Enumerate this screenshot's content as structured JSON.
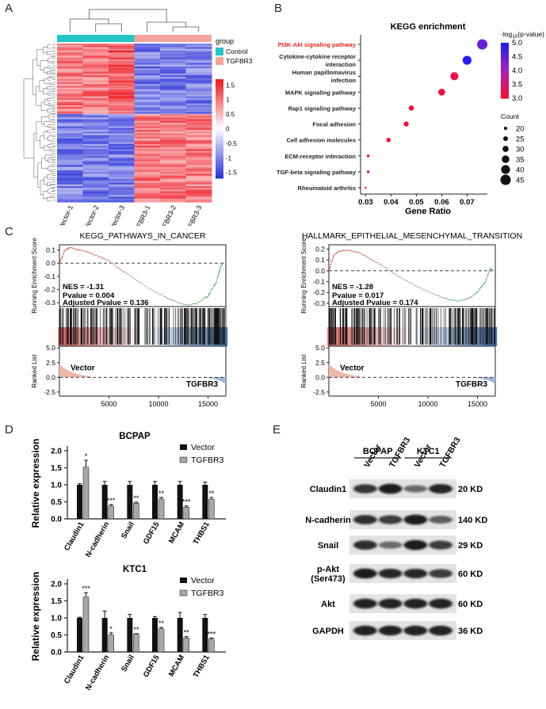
{
  "panels": {
    "A": "A",
    "B": "B",
    "C": "C",
    "D": "D",
    "E": "E"
  },
  "heatmap": {
    "legend_title": "group",
    "groups": [
      {
        "name": "Control",
        "color": "#22c6c6"
      },
      {
        "name": "TGFBR3",
        "color": "#f4a29a"
      }
    ],
    "samples": [
      "Vector-1",
      "Vector-2",
      "Vector-3",
      "TGFBR3-1",
      "TGFBR3-2",
      "TGFBR3-3"
    ],
    "colorbar_ticks": [
      "1.5",
      "1",
      "0.5",
      "0",
      "-0.5",
      "-1",
      "-1.5"
    ],
    "colors": {
      "high": "#ee1c25",
      "mid": "#ffffff",
      "low": "#2c34d8"
    }
  },
  "kegg": {
    "title": "KEGG enrichment",
    "xlabel": "Gene Ratio",
    "xticks": [
      "0.03",
      "0.04",
      "0.05",
      "0.06",
      "0.07"
    ],
    "color_legend_title": "-log10(p-value)",
    "color_ticks": [
      "5.0",
      "4.5",
      "4.0",
      "3.5",
      "3.0"
    ],
    "count_legend_title": "Count",
    "count_values": [
      "20",
      "25",
      "30",
      "35",
      "40",
      "45"
    ],
    "highlight_color": "#e3241b",
    "pathways": [
      {
        "label": [
          "PI3K-Akt signaling pathway"
        ],
        "ratio": 0.076,
        "count": 45,
        "logp": 4.5
      },
      {
        "label": [
          "Cytokine-cytokine receptor",
          "interaction"
        ],
        "ratio": 0.07,
        "count": 40,
        "logp": 5.0
      },
      {
        "label": [
          "Human papillomavirus",
          "infection"
        ],
        "ratio": 0.065,
        "count": 37,
        "logp": 3.2
      },
      {
        "label": [
          "MAPK signaling pathway"
        ],
        "ratio": 0.06,
        "count": 33,
        "logp": 3.1
      },
      {
        "label": [
          "Rap1 signaling pathway"
        ],
        "ratio": 0.048,
        "count": 27,
        "logp": 3.1
      },
      {
        "label": [
          "Focal adhesion"
        ],
        "ratio": 0.046,
        "count": 26,
        "logp": 3.1
      },
      {
        "label": [
          "Cell adhesion molecules"
        ],
        "ratio": 0.039,
        "count": 24,
        "logp": 3.1
      },
      {
        "label": [
          "ECM-receptor interaction"
        ],
        "ratio": 0.031,
        "count": 18,
        "logp": 3.0
      },
      {
        "label": [
          "TGF-beta signaling pathway"
        ],
        "ratio": 0.031,
        "count": 18,
        "logp": 3.9
      },
      {
        "label": [
          "Rheumatoid arthritis"
        ],
        "ratio": 0.03,
        "count": 15,
        "logp": 3.0
      }
    ]
  },
  "gsea": [
    {
      "title": "KEGG_PATHWAYS_IN_CANCER",
      "ylabel_top": "Running Enrichment Score",
      "ylabel_bottom": "Ranked List",
      "top_ticks": [
        "0.1",
        "0.0",
        "-0.1",
        "-0.2",
        "-0.3"
      ],
      "bottom_ticks": [
        "5.0",
        "2.5",
        "0.0",
        "-2.5"
      ],
      "xticks": [
        "5000",
        "10000",
        "15000"
      ],
      "nes": "NES = -1.31",
      "pvalue": "Pvalue = 0.004",
      "adjp": "Adjusted Pvalue = 0.136",
      "left_label": "Vector",
      "right_label": "TGFBR3",
      "es_points": [
        [
          0,
          0
        ],
        [
          500,
          0.09
        ],
        [
          1000,
          0.12
        ],
        [
          2000,
          0.1
        ],
        [
          3000,
          0.08
        ],
        [
          4000,
          0.05
        ],
        [
          5000,
          0.02
        ],
        [
          6000,
          -0.04
        ],
        [
          7000,
          -0.09
        ],
        [
          8000,
          -0.14
        ],
        [
          9000,
          -0.19
        ],
        [
          10000,
          -0.23
        ],
        [
          11000,
          -0.27
        ],
        [
          12000,
          -0.3
        ],
        [
          13000,
          -0.32
        ],
        [
          14000,
          -0.3
        ],
        [
          15000,
          -0.25
        ],
        [
          15800,
          -0.15
        ],
        [
          16300,
          -0.02
        ],
        [
          16600,
          0
        ]
      ]
    },
    {
      "title": "HALLMARK_EPITHELIAL_MESENCHYMAL_TRANSITION",
      "ylabel_top": "Running Enrichment Score",
      "ylabel_bottom": "Ranked List",
      "top_ticks": [
        "0.2",
        "0.1",
        "0.0",
        "-0.1",
        "-0.2",
        "-0.3"
      ],
      "bottom_ticks": [
        "5.0",
        "2.5",
        "0.0",
        "-2.5"
      ],
      "xticks": [
        "5000",
        "10000",
        "15000"
      ],
      "nes": "NES = -1.28",
      "pvalue": "Pvalue = 0.017",
      "adjp": "Adjusted Pvalue = 0.174",
      "left_label": "Vector",
      "right_label": "TGFBR3",
      "es_points": [
        [
          0,
          0
        ],
        [
          500,
          0.14
        ],
        [
          1000,
          0.18
        ],
        [
          2000,
          0.19
        ],
        [
          3000,
          0.17
        ],
        [
          4000,
          0.12
        ],
        [
          5000,
          0.07
        ],
        [
          6000,
          0.01
        ],
        [
          7000,
          -0.05
        ],
        [
          8000,
          -0.1
        ],
        [
          9000,
          -0.15
        ],
        [
          10000,
          -0.19
        ],
        [
          11000,
          -0.23
        ],
        [
          12000,
          -0.26
        ],
        [
          13000,
          -0.28
        ],
        [
          14000,
          -0.26
        ],
        [
          15000,
          -0.2
        ],
        [
          15800,
          -0.1
        ],
        [
          16300,
          0.02
        ],
        [
          16600,
          0
        ]
      ]
    }
  ],
  "bars": [
    {
      "title": "BCPAP",
      "ylabel": "Relative expression",
      "yticks": [
        "0.0",
        "0.5",
        "1.0",
        "1.5",
        "2.0"
      ],
      "series_names": [
        "Vector",
        "TGFBR3"
      ],
      "categories": [
        "Claudin1",
        "N-cadherin",
        "Snail",
        "GDF15",
        "MCAM",
        "THBS1"
      ],
      "vector": [
        1.0,
        1.0,
        1.0,
        1.0,
        1.0,
        1.0
      ],
      "tgfbr3": [
        1.52,
        0.38,
        0.46,
        0.58,
        0.34,
        0.58
      ],
      "vector_err": [
        0.03,
        0.1,
        0.1,
        0.1,
        0.1,
        0.08
      ],
      "tgfbr3_err": [
        0.2,
        0.04,
        0.03,
        0.05,
        0.04,
        0.05
      ],
      "sig": [
        "*",
        "***",
        "**",
        "**",
        "***",
        "**"
      ]
    },
    {
      "title": "KTC1",
      "ylabel": "Relative expression",
      "yticks": [
        "0.0",
        "0.5",
        "1.0",
        "1.5",
        "2.0"
      ],
      "series_names": [
        "Vector",
        "TGFBR3"
      ],
      "categories": [
        "Claudin1",
        "N-cadherin",
        "Snail",
        "GDF15",
        "MCAM",
        "THBS1"
      ],
      "vector": [
        1.0,
        1.0,
        1.0,
        1.0,
        1.0,
        1.0
      ],
      "tgfbr3": [
        1.61,
        0.5,
        0.53,
        0.68,
        0.41,
        0.38
      ],
      "vector_err": [
        0.02,
        0.2,
        0.1,
        0.04,
        0.16,
        0.1
      ],
      "tgfbr3_err": [
        0.13,
        0.06,
        0.01,
        0.04,
        0.04,
        0.03
      ],
      "sig": [
        "***",
        "*",
        "**",
        "**",
        "**",
        "***"
      ]
    }
  ],
  "western": {
    "groups": [
      "BCPAP",
      "KTC1"
    ],
    "lanes": [
      "Vector",
      "TGFBR3",
      "Vector",
      "TGFBR3"
    ],
    "rows": [
      {
        "label": [
          "Claudin1"
        ],
        "size": "20 KD",
        "intensity": [
          0.75,
          0.95,
          0.35,
          0.85
        ]
      },
      {
        "label": [
          "N-cadherin"
        ],
        "size": "140 KD",
        "intensity": [
          0.8,
          0.7,
          0.95,
          0.45
        ]
      },
      {
        "label": [
          "Snail"
        ],
        "size": "29 KD",
        "intensity": [
          0.8,
          0.35,
          0.95,
          0.7
        ]
      },
      {
        "label": [
          "p-Akt",
          "(Ser473)"
        ],
        "size": "60 KD",
        "intensity": [
          0.95,
          0.85,
          0.85,
          0.7
        ]
      },
      {
        "label": [
          "Akt"
        ],
        "size": "60 KD",
        "intensity": [
          0.9,
          0.9,
          0.9,
          0.9
        ]
      },
      {
        "label": [
          "GAPDH"
        ],
        "size": "36 KD",
        "intensity": [
          0.9,
          0.9,
          0.9,
          0.9
        ]
      }
    ]
  }
}
